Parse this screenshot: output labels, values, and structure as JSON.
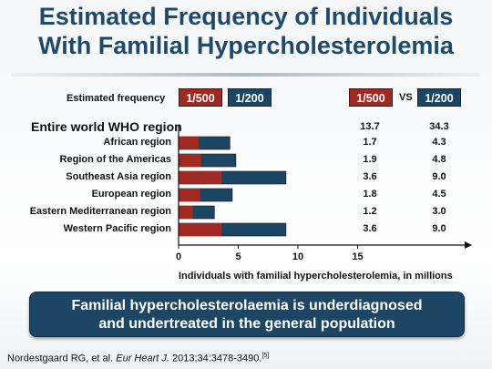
{
  "title_line1": "Estimated Frequency of Individuals",
  "title_line2": "With Familial Hypercholesterolemia",
  "legend": {
    "label": "Estimated frequency",
    "item1": "1/500",
    "item2": "1/200",
    "col1": "1/500",
    "vs": "VS",
    "col2": "1/200",
    "color1": "#a02a21",
    "color2": "#1c4563"
  },
  "world": {
    "label": "Entire world WHO region",
    "v500": "13.7",
    "v200": "34.3"
  },
  "banner_line1": "Familial hypercholesterolaemia is underdiagnosed",
  "banner_line2": "and undertreated in the general population",
  "citation_prefix": "Nordestgaard RG, et al. ",
  "citation_journal": "Eur Heart J.",
  "citation_suffix": " 2013;34:3478-3490.",
  "citation_ref": "[5]",
  "chart_data": {
    "type": "bar",
    "orientation": "horizontal",
    "stacked": true,
    "categories": [
      "African  region",
      "Region of the Americas",
      "Southeast Asia region",
      "European region",
      "Eastern Mediterranean region",
      "Western Pacific region"
    ],
    "series": [
      {
        "name": "1/500",
        "values": [
          1.7,
          1.9,
          3.6,
          1.8,
          1.2,
          3.6
        ],
        "color": "#a02a21"
      },
      {
        "name": "1/200",
        "values": [
          4.3,
          4.8,
          9.0,
          4.5,
          3.0,
          9.0
        ],
        "color": "#1c4563"
      }
    ],
    "value_labels_500": [
      "1.7",
      "1.9",
      "3.6",
      "1.8",
      "1.2",
      "3.6"
    ],
    "value_labels_200": [
      "4.3",
      "4.8",
      "9.0",
      "4.5",
      "3.0",
      "9.0"
    ],
    "xlabel": "Individuals with familial hypercholesterolemia, in millions",
    "xticks": [
      "0",
      "5",
      "10",
      "15"
    ],
    "xtick_values": [
      0,
      5,
      10,
      15
    ],
    "xlim": [
      0,
      18
    ],
    "grid": false
  }
}
